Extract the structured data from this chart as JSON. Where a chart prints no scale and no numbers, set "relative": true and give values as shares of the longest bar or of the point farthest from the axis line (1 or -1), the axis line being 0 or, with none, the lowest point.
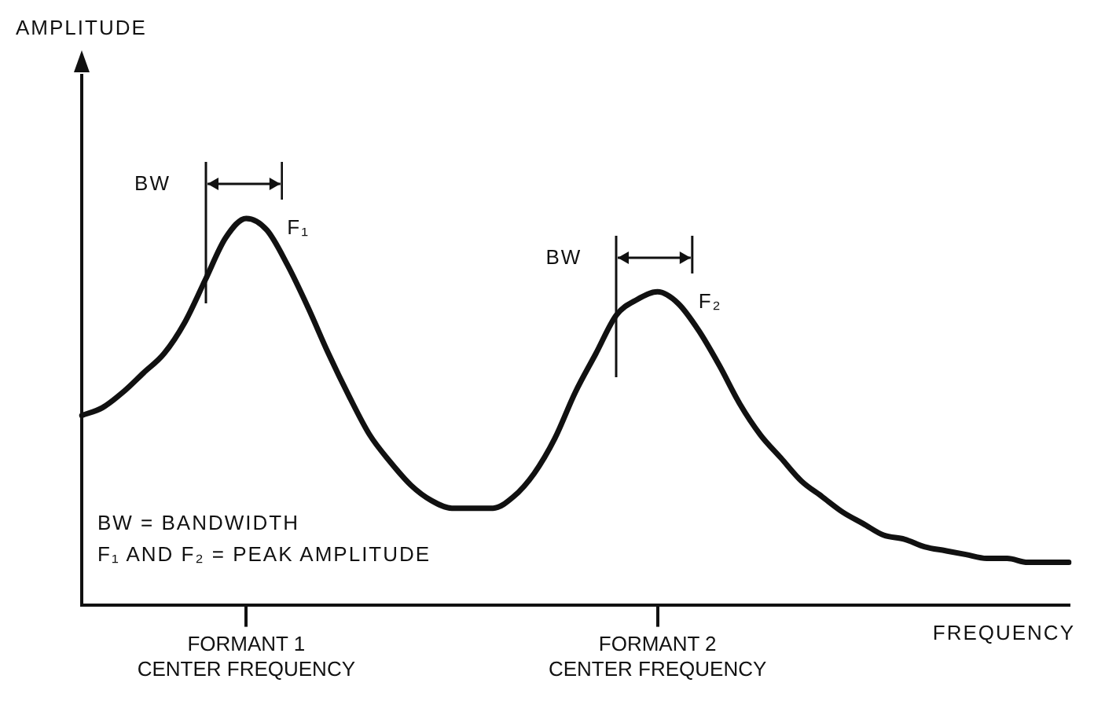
{
  "chart_data": {
    "type": "line",
    "relative": true,
    "xlabel": "FREQUENCY",
    "categories": [
      null,
      null,
      null,
      null,
      null,
      null,
      null,
      null,
      "FORMANT 1 CENTER FREQUENCY",
      null,
      null,
      null,
      null,
      null,
      null,
      null,
      null,
      null,
      null,
      null,
      null,
      null,
      null,
      null,
      null,
      null,
      null,
      null,
      "FORMANT 2 CENTER FREQUENCY",
      null,
      null,
      null,
      null,
      null,
      null,
      null,
      null,
      null,
      null,
      null,
      null,
      null,
      null,
      null,
      null,
      null,
      null,
      null,
      null
    ],
    "series": [
      {
        "color": "#111111",
        "values": [
          0.49,
          0.51,
          0.55,
          0.6,
          0.65,
          0.73,
          0.84,
          0.95,
          1.0,
          0.97,
          0.88,
          0.77,
          0.65,
          0.54,
          0.44,
          0.37,
          0.31,
          0.27,
          0.25,
          0.25,
          0.25,
          0.28,
          0.34,
          0.43,
          0.55,
          0.65,
          0.75,
          0.79,
          0.81,
          0.78,
          0.71,
          0.62,
          0.52,
          0.44,
          0.38,
          0.32,
          0.28,
          0.24,
          0.21,
          0.18,
          0.17,
          0.15,
          0.14,
          0.13,
          0.12,
          0.12,
          0.11,
          0.11,
          0.11
        ]
      }
    ],
    "marker": "none",
    "line_style": "solid",
    "grid": false,
    "legend": false,
    "annotations": [
      "AMPLITUDE",
      "BW",
      {
        "text": "F₁",
        "x": "FORMANT 1 CENTER FREQUENCY",
        "y": 1.0
      },
      "BW",
      {
        "text": "F₂",
        "x": "FORMANT 2 CENTER FREQUENCY",
        "y": 0.81
      },
      "BW = BANDWIDTH",
      "F₁ AND F₂ = PEAK AMPLITUDE"
    ]
  }
}
